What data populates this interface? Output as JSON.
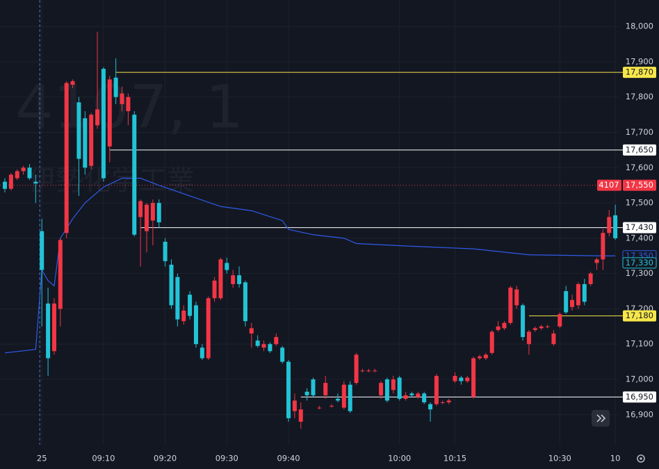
{
  "chart_data": {
    "type": "candlestick",
    "watermark": {
      "symbol": "4107, 1",
      "name": "伊勢化学工業"
    },
    "categories": [
      null,
      null,
      null,
      null,
      null,
      null,
      "25",
      null,
      null,
      null,
      null,
      null,
      null,
      null,
      null,
      null,
      "09:10",
      null,
      null,
      null,
      null,
      null,
      null,
      null,
      null,
      null,
      "09:20",
      null,
      null,
      null,
      null,
      null,
      null,
      null,
      null,
      null,
      "09:30",
      null,
      null,
      null,
      null,
      null,
      null,
      null,
      null,
      null,
      "09:40",
      null,
      null,
      null,
      null,
      null,
      null,
      null,
      null,
      null,
      null,
      null,
      null,
      null,
      null,
      null,
      null,
      null,
      "10:00",
      null,
      null,
      null,
      null,
      null,
      null,
      null,
      null,
      "10:15",
      null,
      null,
      null,
      null,
      null,
      null,
      null,
      null,
      null,
      null,
      null,
      null,
      null,
      null,
      null,
      null,
      "10:30",
      null,
      null,
      null,
      null,
      null,
      null,
      null,
      null,
      "10"
    ],
    "open": [
      17560,
      17540,
      17570,
      17590,
      17600,
      17560,
      17420,
      17215,
      17080,
      17200,
      17415,
      17835,
      17785,
      17740,
      17605,
      17720,
      17880,
      17660,
      17855,
      17780,
      17760,
      17750,
      17460,
      17420,
      17450,
      17500,
      17390,
      17325,
      17290,
      17165,
      17240,
      17210,
      17090,
      17060,
      17230,
      17230,
      17330,
      17270,
      17295,
      17275,
      17130,
      17110,
      17090,
      17100,
      17100,
      17090,
      17050,
      16910,
      16880,
      16965,
      17000,
      16920,
      16955,
      16925,
      16945,
      16920,
      16985,
      16990,
      17025,
      17025,
      17025,
      16955,
      17000,
      16970,
      17005,
      16945,
      16960,
      16950,
      16960,
      16930,
      16930,
      16935,
      16935,
      16995,
      17005,
      16995,
      16950,
      17060,
      17060,
      17075,
      17140,
      17145,
      17160,
      17210,
      17210,
      17100,
      17140,
      17145,
      17150,
      17100,
      17150,
      17250,
      17205,
      17210,
      17270,
      17270,
      17330,
      17340,
      17415,
      17465
    ],
    "high": [
      17570,
      17585,
      17595,
      17605,
      17610,
      17580,
      17455,
      17260,
      17230,
      17400,
      17845,
      17850,
      17800,
      17760,
      17755,
      17985,
      17885,
      17860,
      17910,
      17830,
      17810,
      17760,
      17510,
      17500,
      17510,
      17510,
      17400,
      17340,
      17300,
      17210,
      17250,
      17220,
      17100,
      17235,
      17290,
      17345,
      17345,
      17310,
      17320,
      17280,
      17160,
      17125,
      17110,
      17105,
      17130,
      17095,
      17055,
      16960,
      16935,
      16975,
      17005,
      16925,
      17010,
      16930,
      16960,
      16995,
      16995,
      17075,
      17030,
      17030,
      17030,
      16995,
      17005,
      17010,
      17010,
      16965,
      16965,
      16965,
      16965,
      16935,
      17015,
      16940,
      16945,
      17020,
      17010,
      17010,
      17065,
      17070,
      17075,
      17140,
      17165,
      17165,
      17265,
      17265,
      17215,
      17140,
      17150,
      17155,
      17155,
      17140,
      17190,
      17265,
      17240,
      17275,
      17285,
      17305,
      17345,
      17425,
      17480,
      17495
    ],
    "low": [
      17530,
      17535,
      17565,
      17580,
      17565,
      17500,
      17150,
      17010,
      17070,
      17150,
      17400,
      17825,
      17520,
      17580,
      17595,
      17710,
      17560,
      17615,
      17780,
      17760,
      17720,
      17405,
      17320,
      17360,
      17380,
      17430,
      17320,
      17200,
      17150,
      17155,
      17170,
      17090,
      17055,
      17055,
      17220,
      17225,
      17300,
      17260,
      17260,
      17150,
      17090,
      17090,
      17080,
      17075,
      17095,
      17045,
      16880,
      16890,
      16860,
      16940,
      16950,
      16915,
      16945,
      16920,
      16935,
      16915,
      16905,
      16985,
      17020,
      17020,
      17020,
      16945,
      16935,
      16960,
      16940,
      16940,
      16950,
      16945,
      16930,
      16880,
      16925,
      16930,
      16930,
      16990,
      16985,
      16990,
      16945,
      17055,
      17055,
      17070,
      17135,
      17140,
      17155,
      17200,
      17110,
      17070,
      17135,
      17140,
      17145,
      17095,
      17145,
      17185,
      17195,
      17200,
      17210,
      17265,
      17310,
      17310,
      17405,
      17395
    ],
    "close": [
      17540,
      17580,
      17590,
      17600,
      17570,
      17555,
      17310,
      17060,
      17215,
      17395,
      17840,
      17845,
      17625,
      17600,
      17750,
      17765,
      17570,
      17850,
      17800,
      17810,
      17800,
      17410,
      17505,
      17495,
      17500,
      17445,
      17335,
      17210,
      17170,
      17195,
      17180,
      17100,
      17060,
      17230,
      17280,
      17340,
      17310,
      17295,
      17270,
      17165,
      17145,
      17095,
      17100,
      17080,
      17120,
      17050,
      16890,
      16940,
      16915,
      16955,
      16955,
      16920,
      16990,
      16925,
      16940,
      16985,
      16910,
      17070,
      17025,
      17025,
      17025,
      16990,
      16940,
      17000,
      16945,
      16955,
      16955,
      16960,
      16935,
      16915,
      17010,
      16935,
      16940,
      17010,
      16995,
      17005,
      17060,
      17065,
      17070,
      17135,
      17150,
      17160,
      17260,
      17255,
      17120,
      17135,
      17145,
      17150,
      17150,
      17130,
      17185,
      17190,
      17225,
      17270,
      17220,
      17300,
      17340,
      17415,
      17460,
      17400
    ],
    "up_color": "#f23645",
    "down_color": "#22c3d6",
    "vwap": {
      "color": "#2f5bea",
      "x": [
        0,
        5,
        6,
        7,
        8,
        9,
        11,
        13,
        16,
        19,
        22,
        25,
        30,
        35,
        40,
        45,
        46,
        50,
        55,
        57,
        65,
        76,
        85,
        97,
        99
      ],
      "values": [
        17075,
        17085,
        17310,
        17280,
        17265,
        17400,
        17455,
        17500,
        17545,
        17570,
        17570,
        17550,
        17520,
        17490,
        17478,
        17450,
        17425,
        17410,
        17400,
        17385,
        17378,
        17370,
        17353,
        17350,
        17350
      ]
    },
    "levels": [
      {
        "value": 17870,
        "label": "17,870",
        "color": "#f7e64a",
        "start": 18
      },
      {
        "value": 17650,
        "label": "17,650",
        "color": "#ffffff",
        "start": 17
      },
      {
        "value": 17430,
        "label": "17,430",
        "color": "#ffffff",
        "start": 22
      },
      {
        "value": 17180,
        "label": "17,180",
        "color": "#f7e64a",
        "start": 85
      },
      {
        "value": 16950,
        "label": "16,950",
        "color": "#ffffff",
        "start": 48
      }
    ],
    "price_tags": [
      {
        "value": 17550,
        "label": "17,550",
        "tag": "4107",
        "color": "#f23645"
      },
      {
        "value": 17350,
        "label": "17,350",
        "color": "#2f5bea"
      },
      {
        "value": 17330,
        "label": "17,330",
        "color": "#22c3d6"
      }
    ],
    "ylim": [
      16815,
      18075
    ],
    "yticks": [
      {
        "value": 16900,
        "label": "16,900"
      },
      {
        "value": 17000,
        "label": "17,000"
      },
      {
        "value": 17100,
        "label": "17,100"
      },
      {
        "value": 17200,
        "label": "17,200"
      },
      {
        "value": 17300,
        "label": "17,300"
      },
      {
        "value": 17400,
        "label": "17,400"
      },
      {
        "value": 17500,
        "label": "17,500"
      },
      {
        "value": 17600,
        "label": "17,600"
      },
      {
        "value": 17700,
        "label": "17,700"
      },
      {
        "value": 17800,
        "label": "17,800"
      },
      {
        "value": 17900,
        "label": "17,900"
      },
      {
        "value": 18000,
        "label": "18,000"
      }
    ],
    "grid": true
  }
}
